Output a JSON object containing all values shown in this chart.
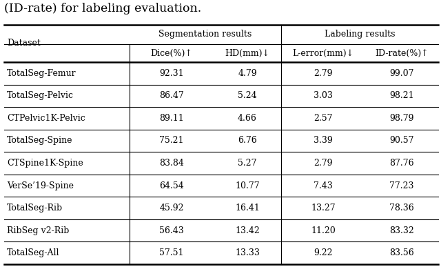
{
  "caption": "(ID-rate) for labeling evaluation.",
  "col_header_row2": [
    "Dataset",
    "Dice(%)↑",
    "HD(mm)↓",
    "L-error(mm)↓",
    "ID-rate(%)↑"
  ],
  "rows": [
    [
      "TotalSeg-Femur",
      "92.31",
      "4.79",
      "2.79",
      "99.07"
    ],
    [
      "TotalSeg-Pelvic",
      "86.47",
      "5.24",
      "3.03",
      "98.21"
    ],
    [
      "CTPelvic1K-Pelvic",
      "89.11",
      "4.66",
      "2.57",
      "98.79"
    ],
    [
      "TotalSeg-Spine",
      "75.21",
      "6.76",
      "3.39",
      "90.57"
    ],
    [
      "CTSpine1K-Spine",
      "83.84",
      "5.27",
      "2.79",
      "87.76"
    ],
    [
      "VerSe’19-Spine",
      "64.54",
      "10.77",
      "7.43",
      "77.23"
    ],
    [
      "TotalSeg-Rib",
      "45.92",
      "16.41",
      "13.27",
      "78.36"
    ],
    [
      "RibSeg v2-Rib",
      "56.43",
      "13.42",
      "11.20",
      "83.32"
    ],
    [
      "TotalSeg-All",
      "57.51",
      "13.33",
      "9.22",
      "83.56"
    ]
  ],
  "background_color": "#ffffff",
  "text_color": "#000000",
  "line_color": "#000000",
  "font_size": 9.0,
  "caption_font_size": 12.5,
  "fig_width": 6.4,
  "fig_height": 3.87,
  "dpi": 100
}
